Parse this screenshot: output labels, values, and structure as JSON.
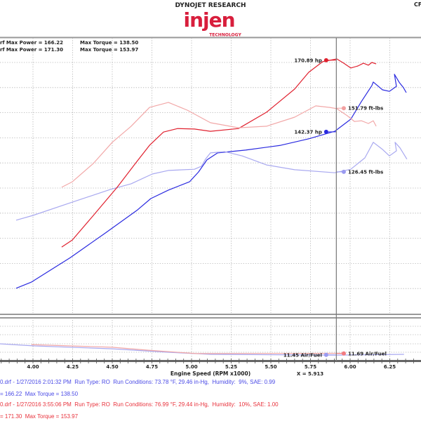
{
  "header": {
    "brand": "DYNOJET RESEARCH",
    "logo_text": "injen",
    "logo_subtext": "TECHNOLOGY",
    "corner_text": "CF",
    "max_lines": [
      {
        "power": "rf Max Power = 166.22",
        "torque": "Max Torque = 138.50"
      },
      {
        "power": "rf Max Power = 171.30",
        "torque": "Max Torque = 153.97"
      }
    ]
  },
  "runs": [
    {
      "line1": "0.drf - 1/27/2016 2:01:32 PM  Run Type: RO  Run Conditions: 73.78 °F, 29.46 in-Hg,  Humidity:  9%, SAE: 0.99",
      "line2": "= 166.22  Max Torque = 138.50"
    },
    {
      "line1": "0.drf - 1/27/2016 3:55:06 PM  Run Type: RO  Run Conditions: 76.99 °F, 29.44 in-Hg,  Humidity:  10%, SAE: 1.00",
      "line2": "= 171.30  Max Torque = 153.97"
    }
  ],
  "colors": {
    "run1_power": "#2a2ae0",
    "run1_torque": "#a9a9f0",
    "run2_power": "#e0202e",
    "run2_torque": "#f2a8a8",
    "logo": "#d81e3c"
  },
  "chart_data": {
    "type": "line",
    "xlabel": "Engine Speed (RPM x1000)",
    "x_ticks": [
      "4.00",
      "4.25",
      "4.50",
      "4.75",
      "5.00",
      "5.25",
      "5.50",
      "5.75",
      "6.00",
      "6.25"
    ],
    "xlim": [
      3.79,
      6.45
    ],
    "ylim": [
      72,
      178
    ],
    "grid": true,
    "cursor": {
      "x": 5.913,
      "label": "X = 5.913"
    },
    "series": [
      {
        "color": "#2a2ae0",
        "points": [
          [
            3.894,
            80.1
          ],
          [
            3.991,
            82.6
          ],
          [
            4.235,
            92.3
          ],
          [
            4.456,
            102.1
          ],
          [
            4.655,
            111.1
          ],
          [
            4.743,
            115.8
          ],
          [
            4.854,
            119.2
          ],
          [
            4.987,
            122.5
          ],
          [
            5.044,
            126.4
          ],
          [
            5.097,
            131.2
          ],
          [
            5.164,
            134.0
          ],
          [
            5.341,
            135.1
          ],
          [
            5.562,
            137.0
          ],
          [
            5.739,
            139.6
          ],
          [
            5.903,
            142.6
          ],
          [
            6.004,
            147.4
          ],
          [
            6.071,
            154.4
          ],
          [
            6.137,
            160.8
          ],
          [
            6.146,
            162.2
          ],
          [
            6.204,
            159.1
          ],
          [
            6.248,
            158.5
          ],
          [
            6.292,
            160.5
          ],
          [
            6.279,
            165.3
          ],
          [
            6.31,
            162.0
          ],
          [
            6.336,
            160.0
          ],
          [
            6.354,
            158.0
          ]
        ]
      },
      {
        "color": "#a9a9f0",
        "points": [
          [
            3.894,
            107.2
          ],
          [
            4.0,
            109.1
          ],
          [
            4.235,
            114.1
          ],
          [
            4.487,
            119.4
          ],
          [
            4.619,
            121.7
          ],
          [
            4.752,
            125.6
          ],
          [
            4.854,
            127.0
          ],
          [
            5.018,
            127.5
          ],
          [
            5.062,
            128.7
          ],
          [
            5.088,
            131.5
          ],
          [
            5.119,
            134.0
          ],
          [
            5.208,
            134.5
          ],
          [
            5.319,
            132.8
          ],
          [
            5.473,
            129.2
          ],
          [
            5.65,
            127.3
          ],
          [
            5.903,
            126.1
          ],
          [
            6.004,
            127.5
          ],
          [
            6.093,
            132.0
          ],
          [
            6.146,
            138.2
          ],
          [
            6.204,
            135.4
          ],
          [
            6.248,
            132.8
          ],
          [
            6.292,
            134.8
          ],
          [
            6.283,
            138.2
          ],
          [
            6.314,
            136.0
          ],
          [
            6.358,
            131.5
          ]
        ]
      },
      {
        "color": "#e0202e",
        "points": [
          [
            4.181,
            96.5
          ],
          [
            4.248,
            99.3
          ],
          [
            4.381,
            109.1
          ],
          [
            4.531,
            120.3
          ],
          [
            4.646,
            129.8
          ],
          [
            4.735,
            137.0
          ],
          [
            4.823,
            142.3
          ],
          [
            4.912,
            143.7
          ],
          [
            5.018,
            143.5
          ],
          [
            5.119,
            142.6
          ],
          [
            5.296,
            143.7
          ],
          [
            5.473,
            150.2
          ],
          [
            5.65,
            159.4
          ],
          [
            5.739,
            166.1
          ],
          [
            5.827,
            170.3
          ],
          [
            5.916,
            171.4
          ],
          [
            5.96,
            169.7
          ],
          [
            6.004,
            167.8
          ],
          [
            6.049,
            168.6
          ],
          [
            6.084,
            169.7
          ],
          [
            6.115,
            168.9
          ],
          [
            6.137,
            170.0
          ],
          [
            6.164,
            169.4
          ]
        ]
      },
      {
        "color": "#f2a8a8",
        "points": [
          [
            4.181,
            120.3
          ],
          [
            4.248,
            122.5
          ],
          [
            4.381,
            129.8
          ],
          [
            4.5,
            138.2
          ],
          [
            4.619,
            144.6
          ],
          [
            4.735,
            152.1
          ],
          [
            4.854,
            154.1
          ],
          [
            4.973,
            151.0
          ],
          [
            5.119,
            146.0
          ],
          [
            5.296,
            144.0
          ],
          [
            5.473,
            144.6
          ],
          [
            5.65,
            148.2
          ],
          [
            5.783,
            152.7
          ],
          [
            5.872,
            152.1
          ],
          [
            5.916,
            151.6
          ],
          [
            5.982,
            148.8
          ],
          [
            6.027,
            146.5
          ],
          [
            6.071,
            146.8
          ],
          [
            6.115,
            145.7
          ],
          [
            6.146,
            146.8
          ],
          [
            6.164,
            144.6
          ]
        ]
      }
    ],
    "annotations": [
      {
        "text": "170.89 hp",
        "x": 5.849,
        "y": 170.89,
        "color": "#e0202e",
        "side": "left"
      },
      {
        "text": "142.37 hp",
        "x": 5.849,
        "y": 142.37,
        "color": "#2a2ae0",
        "side": "left"
      },
      {
        "text": "151.79 ft-lbs",
        "x": 5.96,
        "y": 151.79,
        "color": "#f2a0a0",
        "side": "right"
      },
      {
        "text": "126.45 ft-lbs",
        "x": 5.96,
        "y": 126.45,
        "color": "#9a9af0",
        "side": "right"
      }
    ],
    "air_fuel": {
      "series": [
        {
          "color": "#a9a9f0",
          "points": [
            [
              3.79,
              12.5
            ],
            [
              4.01,
              12.3
            ],
            [
              4.5,
              12.03
            ],
            [
              4.85,
              11.7
            ],
            [
              5.12,
              11.5
            ],
            [
              5.92,
              11.43
            ],
            [
              6.34,
              11.5
            ]
          ]
        },
        {
          "color": "#f2a8a8",
          "points": [
            [
              3.99,
              12.43
            ],
            [
              4.5,
              12.17
            ],
            [
              4.72,
              11.9
            ],
            [
              5.03,
              11.57
            ],
            [
              5.96,
              11.6
            ]
          ]
        }
      ],
      "annotations": [
        {
          "text": "11.45 Air/Fuel",
          "x": 5.849,
          "y": 11.45,
          "color": "#9a9af0",
          "side": "left"
        },
        {
          "text": "11.69 Air/Fuel",
          "x": 5.96,
          "y": 11.58,
          "color": "#f27a80",
          "side": "right"
        }
      ]
    }
  }
}
